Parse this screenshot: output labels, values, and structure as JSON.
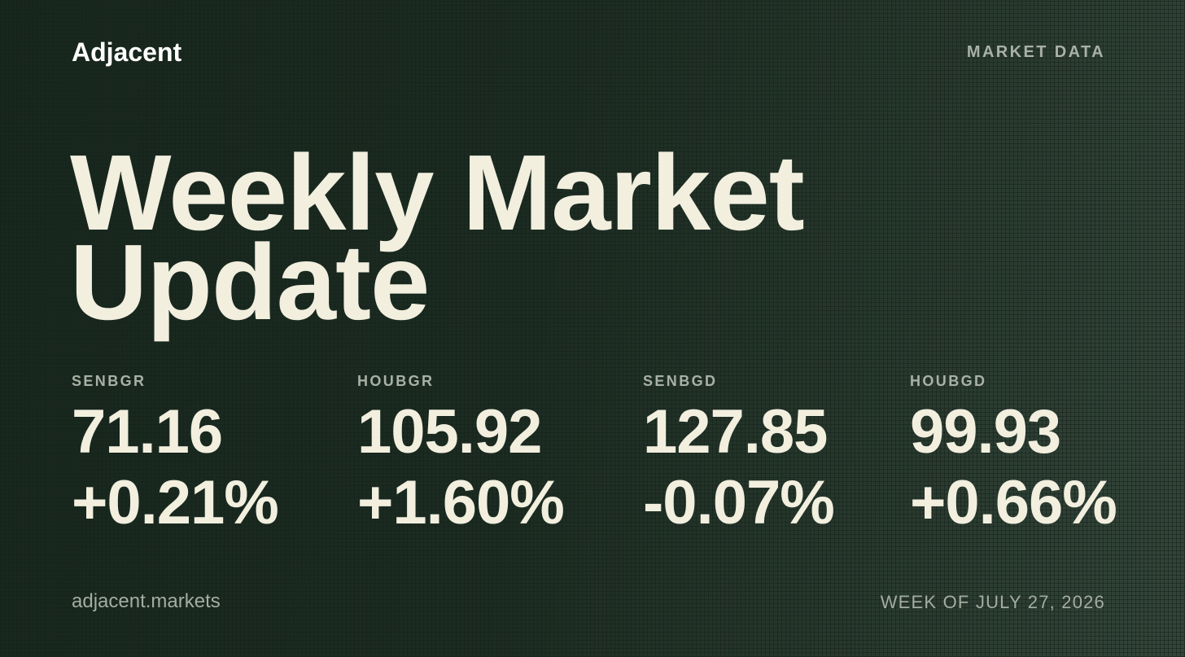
{
  "header": {
    "brand": "Adjacent",
    "tag": "MARKET DATA"
  },
  "title_lines": [
    "Weekly Market",
    "Update"
  ],
  "tickers": [
    {
      "symbol": "SENBGR",
      "value": "71.16",
      "change": "+0.21%"
    },
    {
      "symbol": "HOUBGR",
      "value": "105.92",
      "change": "+1.60%"
    },
    {
      "symbol": "SENBGD",
      "value": "127.85",
      "change": "-0.07%"
    },
    {
      "symbol": "HOUBGD",
      "value": "99.93",
      "change": "+0.66%"
    }
  ],
  "footer": {
    "url": "adjacent.markets",
    "date": "WEEK OF JULY 27, 2026"
  }
}
